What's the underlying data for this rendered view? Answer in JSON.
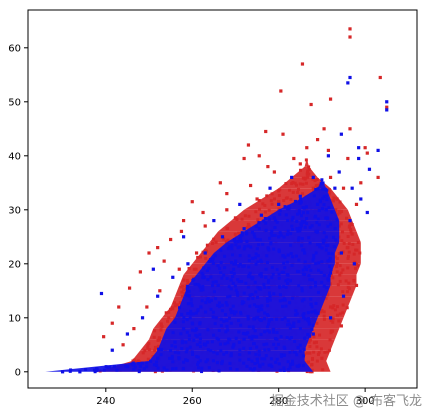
{
  "chart_data": {
    "type": "scatter",
    "title": "",
    "xlabel": "",
    "ylabel": "",
    "xlim": [
      222,
      312
    ],
    "ylim": [
      -3,
      67
    ],
    "x_ticks": [
      240,
      260,
      280,
      300
    ],
    "y_ticks": [
      0,
      10,
      20,
      30,
      40,
      50,
      60
    ],
    "grid": false,
    "legend": "none",
    "series": [
      {
        "color": "#d62728",
        "points": [
          [
            296.5,
            63.5
          ],
          [
            296.5,
            62.0
          ],
          [
            303.5,
            54.5
          ],
          [
            305.0,
            49.0
          ],
          [
            285.5,
            57.0
          ],
          [
            280.5,
            52.0
          ],
          [
            287.5,
            49.5
          ],
          [
            292.0,
            50.5
          ],
          [
            290.5,
            45.0
          ],
          [
            296.5,
            45.0
          ],
          [
            289.0,
            43.0
          ],
          [
            277.0,
            44.5
          ],
          [
            281.0,
            44.0
          ],
          [
            273.0,
            42.0
          ],
          [
            300.0,
            41.5
          ],
          [
            300.5,
            40.5
          ],
          [
            296.0,
            39.5
          ],
          [
            303.0,
            36.0
          ],
          [
            299.0,
            35.0
          ],
          [
            291.5,
            41.0
          ],
          [
            286.5,
            41.5
          ],
          [
            272.0,
            39.5
          ],
          [
            275.5,
            40.0
          ],
          [
            277.5,
            38.0
          ],
          [
            285.0,
            38.5
          ],
          [
            266.5,
            35.0
          ],
          [
            268.0,
            33.0
          ],
          [
            298.0,
            31.0
          ],
          [
            260.0,
            31.5
          ],
          [
            262.5,
            29.5
          ],
          [
            258.0,
            28.0
          ],
          [
            255.0,
            24.5
          ],
          [
            252.0,
            23.0
          ],
          [
            250.0,
            22.0
          ],
          [
            248.0,
            18.5
          ],
          [
            245.5,
            15.5
          ],
          [
            243.0,
            12.0
          ],
          [
            239.5,
            6.5
          ],
          [
            241.5,
            9.0
          ],
          [
            253.5,
            20.5
          ],
          [
            257.5,
            26.0
          ],
          [
            263.0,
            27.0
          ],
          [
            268.0,
            30.0
          ],
          [
            273.5,
            34.5
          ],
          [
            279.0,
            37.0
          ],
          [
            283.5,
            39.5
          ],
          [
            292.0,
            36.0
          ],
          [
            295.0,
            34.0
          ],
          [
            280.0,
            31.5
          ],
          [
            275.0,
            32.0
          ],
          [
            270.0,
            28.5
          ],
          [
            265.5,
            24.0
          ],
          [
            261.0,
            22.0
          ],
          [
            257.0,
            19.0
          ],
          [
            252.5,
            15.0
          ],
          [
            249.5,
            12.0
          ],
          [
            246.5,
            8.0
          ],
          [
            244.0,
            5.0
          ],
          [
            281.5,
            25.0
          ],
          [
            287.0,
            27.5
          ],
          [
            291.0,
            29.0
          ],
          [
            294.0,
            27.0
          ],
          [
            296.0,
            23.0
          ],
          [
            290.0,
            20.0
          ],
          [
            286.0,
            17.0
          ],
          [
            282.0,
            12.5
          ],
          [
            279.0,
            8.0
          ],
          [
            277.0,
            4.0
          ],
          [
            282.5,
            3.0
          ],
          [
            287.0,
            5.5
          ],
          [
            292.0,
            12.0
          ],
          [
            288.0,
            10.0
          ],
          [
            284.0,
            7.0
          ],
          [
            289.5,
            15.0
          ],
          [
            283.0,
            20.5
          ],
          [
            278.0,
            22.5
          ],
          [
            272.5,
            21.0
          ],
          [
            268.0,
            18.0
          ],
          [
            264.0,
            14.5
          ],
          [
            259.5,
            11.0
          ],
          [
            255.5,
            7.5
          ],
          [
            251.5,
            4.5
          ],
          [
            247.5,
            2.0
          ],
          [
            243.0,
            1.0
          ],
          [
            238.0,
            0.5
          ],
          [
            253.0,
            1.0
          ],
          [
            262.0,
            2.0
          ],
          [
            271.0,
            3.0
          ],
          [
            275.0,
            1.5
          ],
          [
            281.0,
            0.5
          ],
          [
            286.0,
            1.5
          ],
          [
            290.0,
            2.5
          ],
          [
            294.5,
            8.5
          ],
          [
            298.0,
            16.0
          ],
          [
            297.0,
            25.5
          ],
          [
            293.5,
            32.0
          ],
          [
            288.0,
            34.0
          ],
          [
            285.0,
            30.5
          ],
          [
            276.5,
            27.0
          ],
          [
            271.0,
            25.0
          ],
          [
            266.0,
            21.5
          ],
          [
            262.0,
            18.0
          ]
        ]
      },
      {
        "color": "#1010e6",
        "points": [
          [
            296.5,
            54.5
          ],
          [
            296.0,
            53.5
          ],
          [
            305.0,
            50.0
          ],
          [
            305.0,
            48.5
          ],
          [
            294.5,
            44.0
          ],
          [
            298.5,
            41.5
          ],
          [
            291.5,
            40.0
          ],
          [
            294.0,
            37.0
          ],
          [
            301.0,
            37.5
          ],
          [
            297.0,
            34.0
          ],
          [
            298.5,
            39.5
          ],
          [
            288.0,
            36.0
          ],
          [
            285.0,
            32.5
          ],
          [
            280.0,
            31.0
          ],
          [
            276.0,
            29.0
          ],
          [
            272.0,
            26.5
          ],
          [
            267.0,
            25.0
          ],
          [
            263.0,
            22.0
          ],
          [
            259.0,
            20.0
          ],
          [
            255.5,
            17.5
          ],
          [
            252.0,
            14.0
          ],
          [
            248.5,
            10.0
          ],
          [
            245.0,
            7.0
          ],
          [
            241.5,
            4.0
          ],
          [
            239.0,
            14.5
          ],
          [
            251.0,
            19.0
          ],
          [
            258.0,
            25.0
          ],
          [
            265.0,
            28.0
          ],
          [
            271.0,
            31.0
          ],
          [
            278.0,
            34.0
          ],
          [
            283.0,
            36.0
          ],
          [
            291.0,
            30.0
          ],
          [
            289.0,
            26.0
          ],
          [
            286.0,
            22.0
          ],
          [
            282.0,
            18.0
          ],
          [
            278.0,
            14.0
          ],
          [
            275.0,
            10.0
          ],
          [
            272.0,
            6.0
          ],
          [
            269.0,
            3.0
          ],
          [
            283.5,
            9.0
          ],
          [
            287.5,
            12.5
          ],
          [
            291.5,
            17.0
          ],
          [
            294.5,
            22.0
          ],
          [
            296.5,
            28.0
          ],
          [
            299.0,
            32.0
          ],
          [
            303.0,
            41.0
          ],
          [
            280.0,
            25.0
          ],
          [
            274.0,
            21.0
          ],
          [
            269.0,
            17.0
          ],
          [
            264.0,
            13.0
          ],
          [
            260.0,
            9.0
          ],
          [
            256.0,
            5.5
          ],
          [
            252.0,
            2.5
          ],
          [
            248.0,
            1.0
          ],
          [
            230.0,
            0.0
          ],
          [
            234.0,
            0.0
          ],
          [
            284.5,
            4.5
          ],
          [
            288.0,
            7.0
          ],
          [
            292.0,
            10.0
          ],
          [
            287.0,
            19.5
          ],
          [
            279.0,
            28.5
          ],
          [
            275.0,
            24.5
          ],
          [
            270.0,
            20.0
          ],
          [
            266.0,
            16.0
          ],
          [
            262.0,
            12.0
          ],
          [
            258.0,
            8.0
          ],
          [
            263.0,
            5.0
          ],
          [
            268.0,
            9.5
          ],
          [
            273.0,
            13.5
          ],
          [
            277.0,
            17.5
          ],
          [
            281.0,
            21.5
          ],
          [
            285.0,
            26.5
          ],
          [
            289.0,
            31.0
          ],
          [
            293.0,
            34.0
          ],
          [
            300.5,
            29.5
          ],
          [
            297.5,
            20.0
          ],
          [
            295.0,
            14.0
          ]
        ]
      }
    ],
    "densities": [
      {
        "color": "#d62728",
        "rows": [
          [
            0,
            238,
            292
          ],
          [
            2,
            246,
            291
          ],
          [
            4,
            248,
            292
          ],
          [
            6,
            250,
            293
          ],
          [
            8,
            251,
            294
          ],
          [
            10,
            253,
            295
          ],
          [
            12,
            255,
            296
          ],
          [
            14,
            256,
            297
          ],
          [
            16,
            257,
            298
          ],
          [
            18,
            258,
            298
          ],
          [
            20,
            260,
            299
          ],
          [
            22,
            262,
            299
          ],
          [
            24,
            264,
            299
          ],
          [
            26,
            266,
            298
          ],
          [
            28,
            269,
            297
          ],
          [
            30,
            272,
            296
          ],
          [
            32,
            276,
            294
          ],
          [
            34,
            280,
            292
          ],
          [
            36,
            283,
            289
          ],
          [
            38,
            286,
            287
          ]
        ]
      },
      {
        "color": "#1010e6",
        "rows": [
          [
            0,
            226,
            288
          ],
          [
            2,
            250,
            286
          ],
          [
            4,
            252,
            286
          ],
          [
            6,
            253,
            287
          ],
          [
            8,
            254,
            288
          ],
          [
            10,
            256,
            289
          ],
          [
            12,
            257,
            290
          ],
          [
            14,
            258,
            291
          ],
          [
            16,
            259,
            292
          ],
          [
            18,
            261,
            292
          ],
          [
            20,
            263,
            293
          ],
          [
            22,
            265,
            293
          ],
          [
            24,
            268,
            294
          ],
          [
            26,
            272,
            294
          ],
          [
            28,
            276,
            294
          ],
          [
            30,
            280,
            293
          ],
          [
            32,
            285,
            292
          ],
          [
            34,
            289,
            291
          ]
        ]
      }
    ]
  },
  "watermark": "掘金技术社区 @ 布客飞龙"
}
